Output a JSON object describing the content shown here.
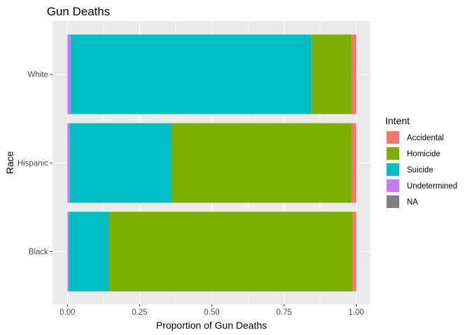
{
  "chart_data": {
    "type": "bar",
    "orientation": "horizontal",
    "stacked": true,
    "title": "Gun Deaths",
    "xlabel": "Proportion of Gun Deaths",
    "ylabel": "Race",
    "xlim": [
      0,
      1
    ],
    "x_ticks": [
      "0.00",
      "0.25",
      "0.50",
      "0.75",
      "1.00"
    ],
    "grid": true,
    "legend_position": "right",
    "legend_title": "Intent",
    "categories": [
      "White",
      "Hispanic",
      "Black"
    ],
    "series": [
      {
        "name": "Accidental",
        "color": "#F8766D",
        "values": [
          0.016,
          0.016,
          0.013
        ]
      },
      {
        "name": "Homicide",
        "color": "#7CAE00",
        "values": [
          0.138,
          0.623,
          0.842
        ]
      },
      {
        "name": "Suicide",
        "color": "#00BFC4",
        "values": [
          0.834,
          0.353,
          0.14
        ]
      },
      {
        "name": "Undetermined",
        "color": "#C77CFF",
        "values": [
          0.012,
          0.008,
          0.005
        ]
      },
      {
        "name": "NA",
        "color": "#7F7F7F",
        "values": [
          0.0,
          0.0,
          0.0
        ]
      }
    ]
  }
}
